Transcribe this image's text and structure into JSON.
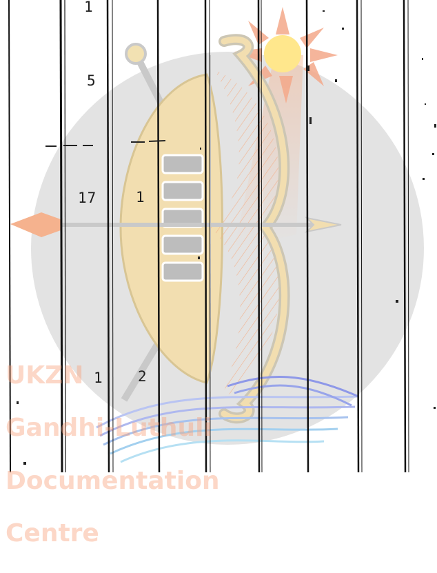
{
  "ledger": {
    "entries": [
      {
        "text": "1"
      },
      {
        "text": "5"
      },
      {
        "text": "17"
      },
      {
        "text": "1"
      },
      {
        "text": "1"
      },
      {
        "text": "2"
      }
    ]
  },
  "watermark": {
    "lines": [
      "UKZN",
      "Gandhi-Luthuli",
      "Documentation",
      "Centre"
    ],
    "emblem": "shield-bow-arrow-sun-emblem"
  }
}
